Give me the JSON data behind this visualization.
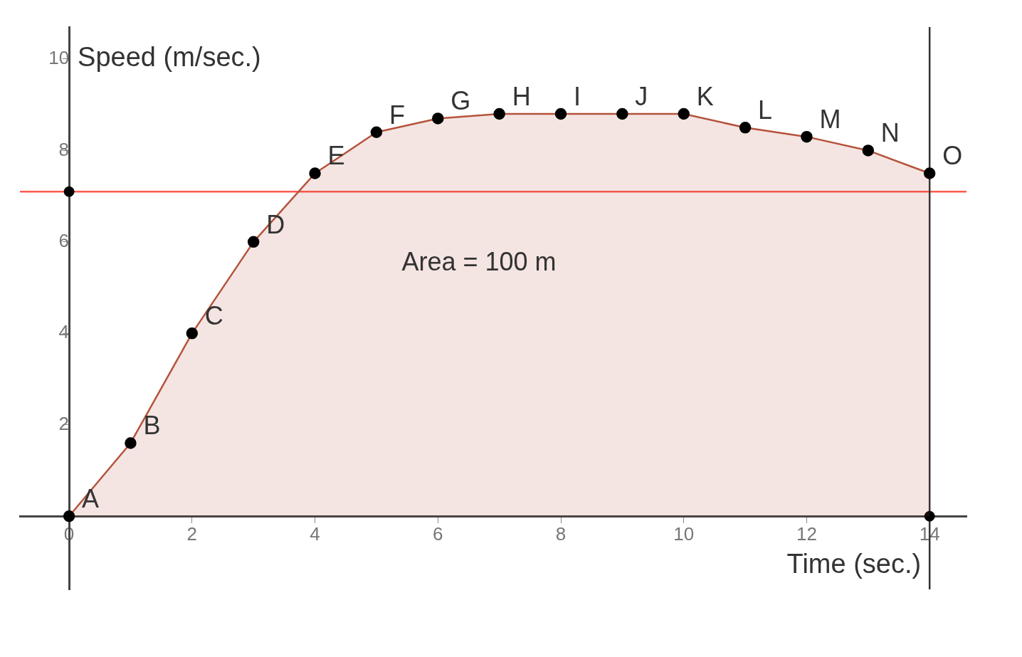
{
  "chart_data": {
    "type": "area",
    "xlabel": "Time (sec.)",
    "ylabel": "Speed (m/sec.)",
    "x": [
      0,
      1,
      2,
      3,
      4,
      5,
      6,
      7,
      8,
      9,
      10,
      11,
      12,
      13,
      14
    ],
    "series": [
      {
        "color": "#b5533c",
        "values": [
          0,
          1.6,
          4,
          6,
          7.5,
          8.4,
          8.7,
          8.8,
          8.8,
          8.8,
          8.8,
          8.5,
          8.3,
          8.0,
          7.5
        ]
      },
      {
        "type": "scatter",
        "color": "#000000",
        "x": [
          0,
          14
        ],
        "values": [
          7.1,
          0
        ]
      }
    ],
    "xlim": [
      -0.8,
      14.6
    ],
    "ylim": [
      -1.6,
      10.7
    ],
    "xticks": [
      0,
      2,
      4,
      6,
      8,
      10,
      12,
      14
    ],
    "yticks": [
      2,
      4,
      6,
      8,
      10
    ],
    "ref_lines": [
      {
        "axis": "y",
        "value": 7.1,
        "color": "#ff5a4f"
      },
      {
        "axis": "x",
        "value": 14,
        "color": "#333333"
      }
    ],
    "annotations": [
      {
        "text": "A",
        "x": 0,
        "y": 0
      },
      {
        "text": "B",
        "x": 1,
        "y": 1.6
      },
      {
        "text": "C",
        "x": 2,
        "y": 4
      },
      {
        "text": "D",
        "x": 3,
        "y": 6
      },
      {
        "text": "E",
        "x": 4,
        "y": 7.5
      },
      {
        "text": "F",
        "x": 5,
        "y": 8.4
      },
      {
        "text": "G",
        "x": 6,
        "y": 8.7
      },
      {
        "text": "H",
        "x": 7,
        "y": 8.8
      },
      {
        "text": "I",
        "x": 8,
        "y": 8.8
      },
      {
        "text": "J",
        "x": 9,
        "y": 8.8
      },
      {
        "text": "K",
        "x": 10,
        "y": 8.8
      },
      {
        "text": "L",
        "x": 11,
        "y": 8.5
      },
      {
        "text": "M",
        "x": 12,
        "y": 8.3
      },
      {
        "text": "N",
        "x": 13,
        "y": 8.0
      },
      {
        "text": "O",
        "x": 14,
        "y": 7.5
      },
      "Area = 100 m"
    ],
    "marker": "circle",
    "grid": false,
    "legend": false
  }
}
